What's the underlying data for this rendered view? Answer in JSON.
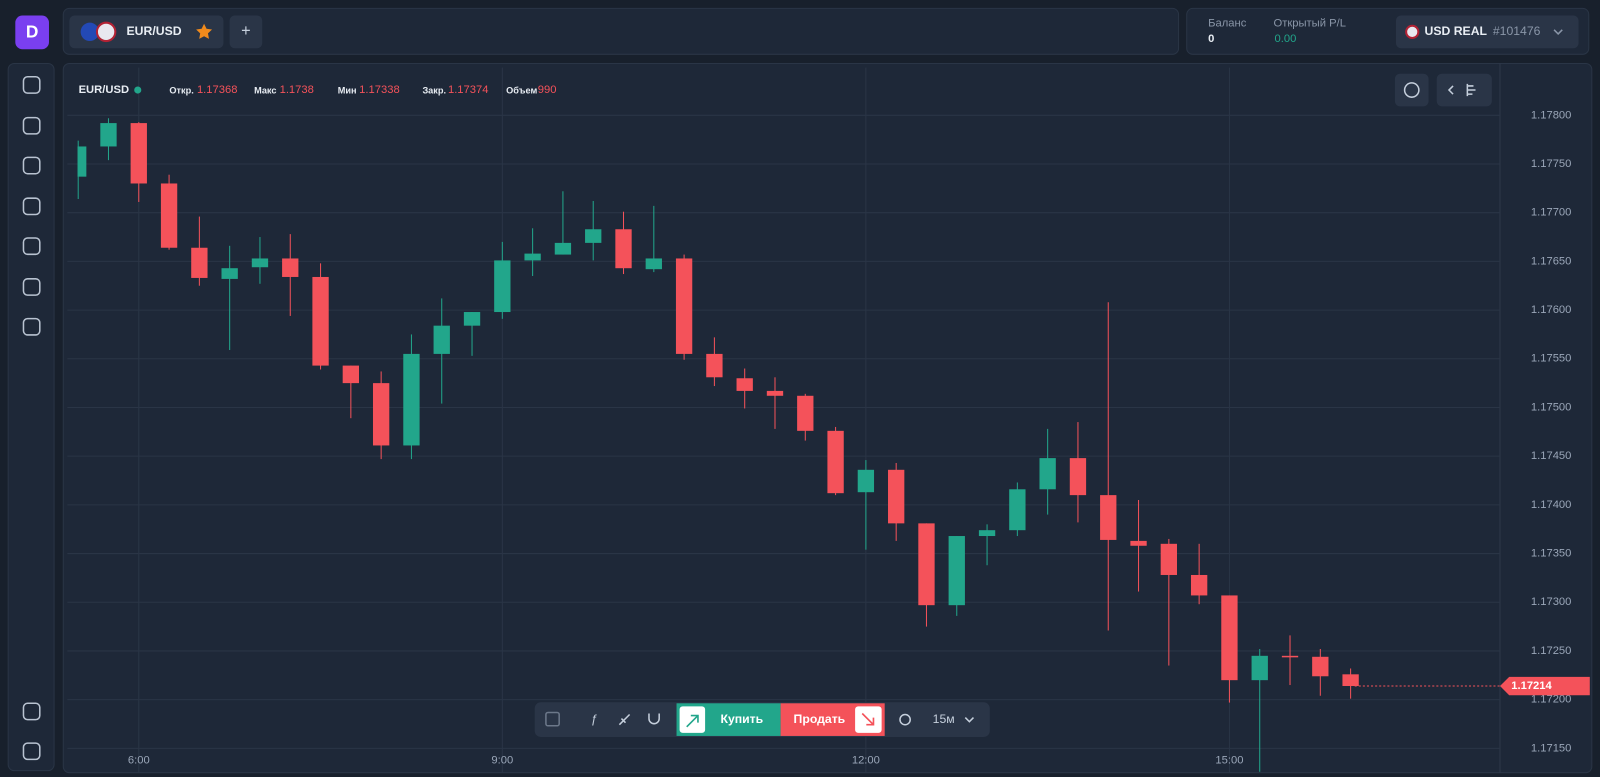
{
  "header": {
    "pair": "EUR/USD",
    "add_tab": "+",
    "balance_label": "Баланс",
    "balance": 0,
    "pl_label": "Открытый P/L",
    "pl": "0.00",
    "account": "USD REAL",
    "account_id": "#101476"
  },
  "ohlc_bar": {
    "symbol": "EUR/USD",
    "items": [
      {
        "label": "Откр.",
        "value": 1.17368
      },
      {
        "label": "Макс",
        "value": 1.1738
      },
      {
        "label": "Мин",
        "value": 1.17338
      },
      {
        "label": "Закр.",
        "value": 1.17374
      },
      {
        "label": "Объем",
        "value": 990
      }
    ]
  },
  "toolbar": {
    "buy": "Купить",
    "sell": "Продать",
    "timeframe": "15м"
  },
  "chart_data": {
    "type": "candlestick",
    "categories": [
      null,
      null,
      "6:00",
      null,
      null,
      null,
      null,
      null,
      null,
      null,
      null,
      null,
      null,
      null,
      "9:00",
      null,
      null,
      null,
      null,
      null,
      null,
      null,
      null,
      null,
      null,
      null,
      "12:00",
      null,
      null,
      null,
      null,
      null,
      null,
      null,
      null,
      null,
      null,
      null,
      "15:00",
      null,
      null,
      null,
      null
    ],
    "open": [
      1.17737,
      1.17768,
      1.17792,
      1.1773,
      1.17664,
      1.17632,
      1.17644,
      1.17653,
      1.17634,
      1.17543,
      1.17525,
      1.17461,
      1.17555,
      1.17584,
      1.17598,
      1.17651,
      1.17657,
      1.17669,
      1.17683,
      1.17642,
      1.17653,
      1.17555,
      1.1753,
      1.17517,
      1.17512,
      1.17476,
      1.17413,
      1.17436,
      1.17381,
      1.17297,
      1.17368,
      1.17374,
      1.17416,
      1.17448,
      1.1741,
      1.17363,
      1.1736,
      1.17328,
      1.17307,
      1.1722,
      1.17245,
      1.17244,
      1.17226
    ],
    "high": [
      1.17774,
      1.17797,
      1.17793,
      1.17739,
      1.17696,
      1.17666,
      1.17675,
      1.17678,
      1.17648,
      1.17543,
      1.17537,
      1.17575,
      1.17612,
      1.17598,
      1.1767,
      1.17684,
      1.17722,
      1.17712,
      1.17701,
      1.17707,
      1.17657,
      1.17572,
      1.1754,
      1.17531,
      1.17514,
      1.1748,
      1.17446,
      1.17443,
      1.17381,
      1.17368,
      1.1738,
      1.17423,
      1.17478,
      1.17485,
      1.17608,
      1.17405,
      1.17365,
      1.1736,
      1.17307,
      1.17252,
      1.17266,
      1.17252,
      1.17232
    ],
    "low": [
      1.17714,
      1.17754,
      1.17711,
      1.17662,
      1.17625,
      1.17559,
      1.17627,
      1.17594,
      1.17539,
      1.17489,
      1.17447,
      1.17447,
      1.17504,
      1.17553,
      1.17591,
      1.17635,
      1.17657,
      1.17651,
      1.17637,
      1.17639,
      1.17549,
      1.17522,
      1.17499,
      1.17478,
      1.17466,
      1.1741,
      1.17354,
      1.17363,
      1.17275,
      1.17286,
      1.17338,
      1.17368,
      1.1739,
      1.17382,
      1.17271,
      1.17311,
      1.17235,
      1.17298,
      1.17197,
      1.17126,
      1.17215,
      1.17204,
      1.17201
    ],
    "close": [
      1.17768,
      1.17792,
      1.1773,
      1.17664,
      1.17633,
      1.17643,
      1.17653,
      1.17634,
      1.17543,
      1.17525,
      1.17461,
      1.17555,
      1.17584,
      1.17598,
      1.17651,
      1.17658,
      1.17669,
      1.17683,
      1.17643,
      1.17653,
      1.17555,
      1.17531,
      1.17517,
      1.17512,
      1.17476,
      1.17412,
      1.17436,
      1.17381,
      1.17297,
      1.17368,
      1.17374,
      1.17416,
      1.17448,
      1.1741,
      1.17364,
      1.17358,
      1.17328,
      1.17307,
      1.1722,
      1.17245,
      1.17244,
      1.17224,
      1.17214
    ],
    "up_color": "#22a68b",
    "down_color": "#f4525a",
    "ylim": [
      1.17125,
      1.17849
    ],
    "yticks": [
      {
        "value": 1.1715,
        "label": "1.17150"
      },
      {
        "value": 1.172,
        "label": "1.17200"
      },
      {
        "value": 1.1725,
        "label": "1.17250"
      },
      {
        "value": 1.173,
        "label": "1.17300"
      },
      {
        "value": 1.1735,
        "label": "1.17350"
      },
      {
        "value": 1.174,
        "label": "1.17400"
      },
      {
        "value": 1.1745,
        "label": "1.17450"
      },
      {
        "value": 1.175,
        "label": "1.17500"
      },
      {
        "value": 1.1755,
        "label": "1.17550"
      },
      {
        "value": 1.176,
        "label": "1.17600"
      },
      {
        "value": 1.1765,
        "label": "1.17650"
      },
      {
        "value": 1.177,
        "label": "1.17700"
      },
      {
        "value": 1.1775,
        "label": "1.17750"
      },
      {
        "value": 1.178,
        "label": "1.17800"
      }
    ],
    "grid": true,
    "current_price": 1.17214
  }
}
